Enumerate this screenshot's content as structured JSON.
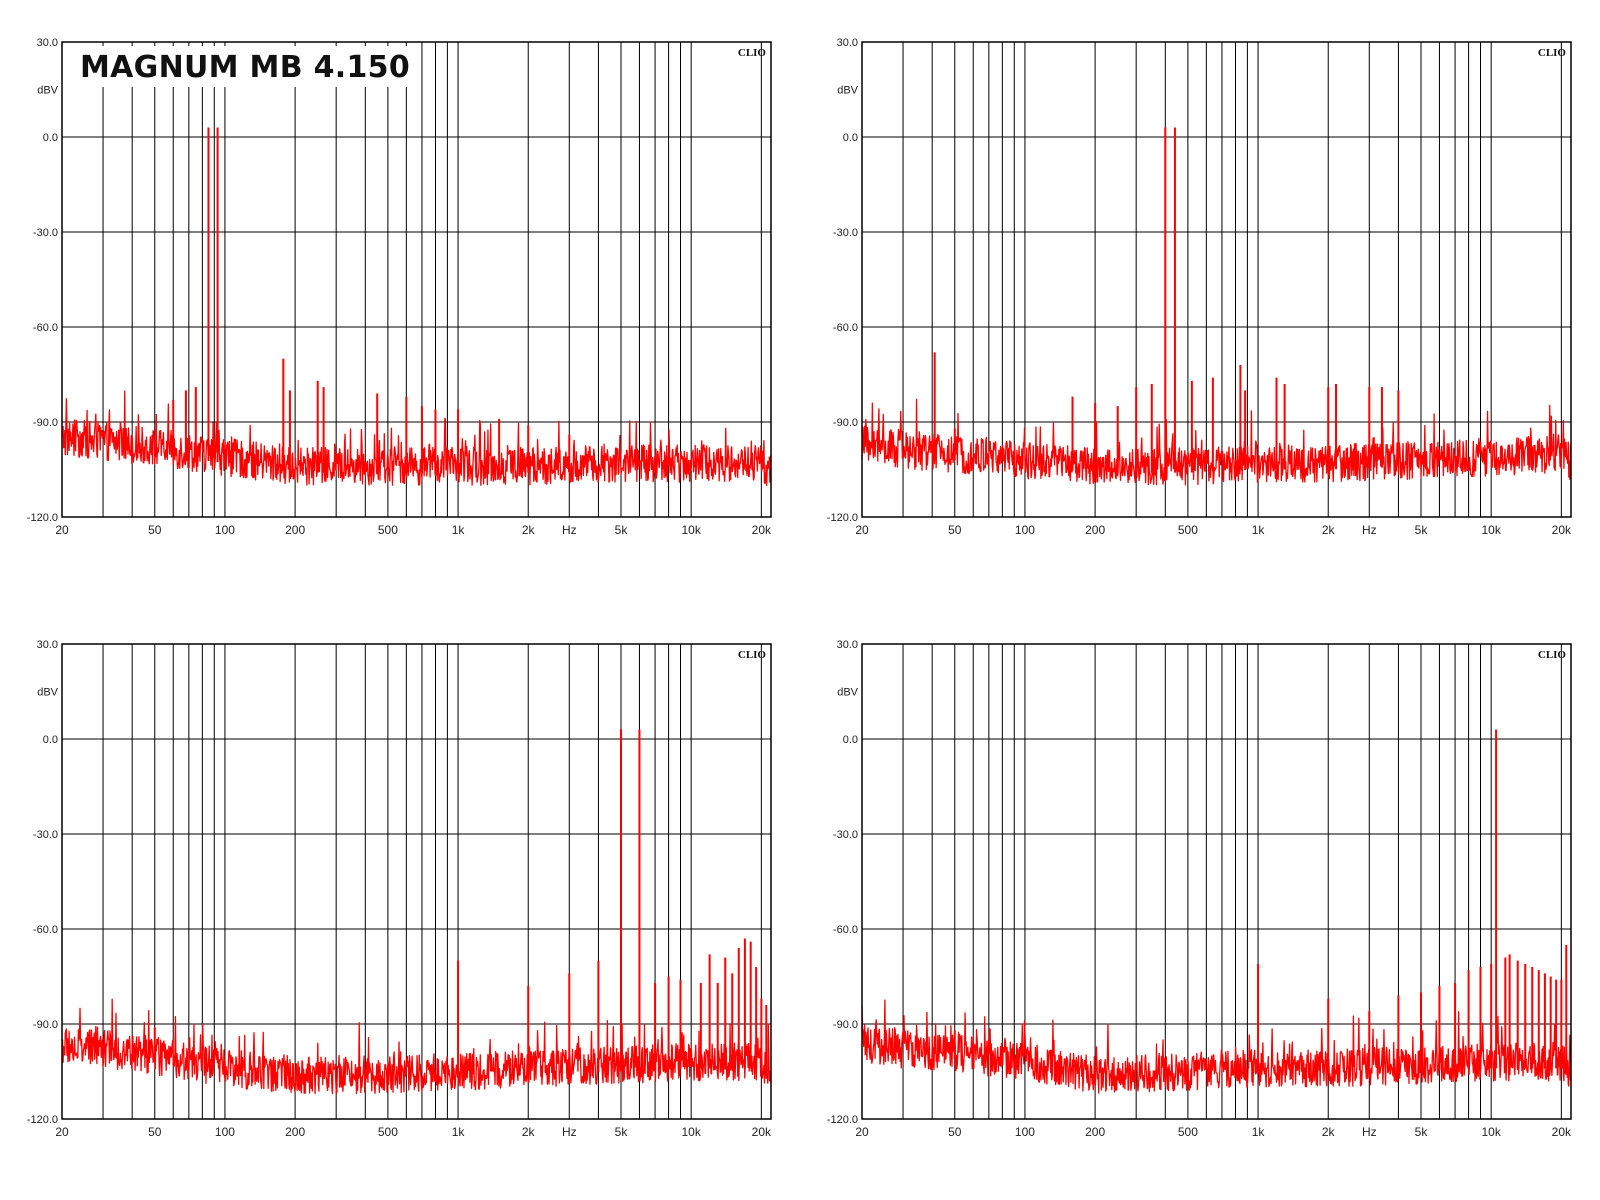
{
  "title": "MAGNUM MB 4.150",
  "colors": {
    "trace": "#ff0000",
    "grid": "#000000",
    "background": "#ffffff"
  },
  "chart_data": [
    {
      "type": "line",
      "watermark": "CLIO",
      "x_scale": "log",
      "xlim": [
        20,
        22000
      ],
      "ylim": [
        -120,
        30
      ],
      "yticks": [
        30,
        0,
        -30,
        -60,
        -90,
        -120
      ],
      "ytick_labels": [
        "30.0",
        "0.0",
        "-30.0",
        "-60.0",
        "-90.0",
        "-120.0"
      ],
      "ylabel": "dBV",
      "xticks": [
        20,
        50,
        100,
        200,
        500,
        1000,
        2000,
        5000,
        10000,
        20000
      ],
      "xtick_labels": [
        "20",
        "50",
        "100",
        "200",
        "500",
        "1k",
        "2k",
        "5k",
        "10k",
        "20k"
      ],
      "xlabel": "Hz",
      "grid": true,
      "noise_floor": [
        [
          20,
          -95
        ],
        [
          30,
          -96
        ],
        [
          50,
          -98
        ],
        [
          100,
          -101
        ],
        [
          200,
          -104
        ],
        [
          500,
          -104
        ],
        [
          1000,
          -104
        ],
        [
          2000,
          -104
        ],
        [
          5000,
          -103
        ],
        [
          10000,
          -103
        ],
        [
          20000,
          -103
        ],
        [
          22000,
          -106
        ]
      ],
      "peaks": [
        [
          85,
          3
        ],
        [
          93,
          3
        ],
        [
          60,
          -83
        ],
        [
          68,
          -80
        ],
        [
          75,
          -79
        ],
        [
          178,
          -70
        ],
        [
          190,
          -80
        ],
        [
          250,
          -77
        ],
        [
          265,
          -79
        ],
        [
          450,
          -81
        ],
        [
          600,
          -82
        ],
        [
          700,
          -85
        ],
        [
          800,
          -86
        ],
        [
          1000,
          -86
        ],
        [
          1500,
          -89
        ],
        [
          2000,
          -91
        ],
        [
          3000,
          -94
        ]
      ]
    },
    {
      "type": "line",
      "watermark": "CLIO",
      "x_scale": "log",
      "xlim": [
        20,
        22000
      ],
      "ylim": [
        -120,
        30
      ],
      "yticks": [
        30,
        0,
        -30,
        -60,
        -90,
        -120
      ],
      "ytick_labels": [
        "30.0",
        "0.0",
        "-30.0",
        "-60.0",
        "-90.0",
        "-120.0"
      ],
      "ylabel": "dBV",
      "xticks": [
        20,
        50,
        100,
        200,
        500,
        1000,
        2000,
        5000,
        10000,
        20000
      ],
      "xtick_labels": [
        "20",
        "50",
        "100",
        "200",
        "500",
        "1k",
        "2k",
        "5k",
        "10k",
        "20k"
      ],
      "xlabel": "Hz",
      "grid": true,
      "noise_floor": [
        [
          20,
          -97
        ],
        [
          30,
          -99
        ],
        [
          50,
          -100
        ],
        [
          100,
          -102
        ],
        [
          200,
          -104
        ],
        [
          500,
          -104
        ],
        [
          1000,
          -103
        ],
        [
          2000,
          -103
        ],
        [
          5000,
          -102
        ],
        [
          10000,
          -101
        ],
        [
          20000,
          -100
        ],
        [
          22000,
          -103
        ]
      ],
      "peaks": [
        [
          400,
          3
        ],
        [
          440,
          3
        ],
        [
          41,
          -68
        ],
        [
          50,
          -92
        ],
        [
          160,
          -82
        ],
        [
          200,
          -84
        ],
        [
          250,
          -85
        ],
        [
          300,
          -79
        ],
        [
          350,
          -78
        ],
        [
          520,
          -77
        ],
        [
          640,
          -76
        ],
        [
          840,
          -72
        ],
        [
          880,
          -80
        ],
        [
          1200,
          -76
        ],
        [
          1300,
          -78
        ],
        [
          2000,
          -79
        ],
        [
          2160,
          -78
        ],
        [
          3000,
          -79
        ],
        [
          3400,
          -79
        ],
        [
          4000,
          -80
        ]
      ]
    },
    {
      "type": "line",
      "watermark": "CLIO",
      "x_scale": "log",
      "xlim": [
        20,
        22000
      ],
      "ylim": [
        -120,
        30
      ],
      "yticks": [
        30,
        0,
        -30,
        -60,
        -90,
        -120
      ],
      "ytick_labels": [
        "30.0",
        "0.0",
        "-30.0",
        "-60.0",
        "-90.0",
        "-120.0"
      ],
      "ylabel": "dBV",
      "xticks": [
        20,
        50,
        100,
        200,
        500,
        1000,
        2000,
        5000,
        10000,
        20000
      ],
      "xtick_labels": [
        "20",
        "50",
        "100",
        "200",
        "500",
        "1k",
        "2k",
        "5k",
        "10k",
        "20k"
      ],
      "xlabel": "Hz",
      "grid": true,
      "noise_floor": [
        [
          20,
          -97
        ],
        [
          30,
          -98
        ],
        [
          50,
          -100
        ],
        [
          100,
          -104
        ],
        [
          200,
          -106
        ],
        [
          500,
          -106
        ],
        [
          1000,
          -105
        ],
        [
          2000,
          -104
        ],
        [
          5000,
          -103
        ],
        [
          10000,
          -102
        ],
        [
          20000,
          -102
        ],
        [
          22000,
          -106
        ]
      ],
      "peaks": [
        [
          5000,
          3
        ],
        [
          6000,
          3
        ],
        [
          50,
          -91
        ],
        [
          1000,
          -70
        ],
        [
          2000,
          -78
        ],
        [
          3000,
          -74
        ],
        [
          4000,
          -70
        ],
        [
          7000,
          -77
        ],
        [
          8000,
          -75
        ],
        [
          9000,
          -76
        ],
        [
          11000,
          -77
        ],
        [
          12000,
          -68
        ],
        [
          13000,
          -77
        ],
        [
          14000,
          -69
        ],
        [
          15000,
          -74
        ],
        [
          16000,
          -66
        ],
        [
          17000,
          -63
        ],
        [
          18000,
          -64
        ],
        [
          19000,
          -72
        ],
        [
          20000,
          -82
        ],
        [
          21000,
          -84
        ]
      ]
    },
    {
      "type": "line",
      "watermark": "CLIO",
      "x_scale": "log",
      "xlim": [
        20,
        22000
      ],
      "ylim": [
        -120,
        30
      ],
      "yticks": [
        30,
        0,
        -30,
        -60,
        -90,
        -120
      ],
      "ytick_labels": [
        "30.0",
        "0.0",
        "-30.0",
        "-60.0",
        "-90.0",
        "-120.0"
      ],
      "ylabel": "dBV",
      "xticks": [
        20,
        50,
        100,
        200,
        500,
        1000,
        2000,
        5000,
        10000,
        20000
      ],
      "xtick_labels": [
        "20",
        "50",
        "100",
        "200",
        "500",
        "1k",
        "2k",
        "5k",
        "10k",
        "20k"
      ],
      "xlabel": "Hz",
      "grid": true,
      "noise_floor": [
        [
          20,
          -96
        ],
        [
          30,
          -98
        ],
        [
          50,
          -99
        ],
        [
          100,
          -102
        ],
        [
          200,
          -106
        ],
        [
          500,
          -105
        ],
        [
          1000,
          -104
        ],
        [
          2000,
          -104
        ],
        [
          5000,
          -103
        ],
        [
          10000,
          -102
        ],
        [
          20000,
          -102
        ],
        [
          22000,
          -106
        ]
      ],
      "peaks": [
        [
          10500,
          3
        ],
        [
          50,
          -92
        ],
        [
          1000,
          -71
        ],
        [
          2000,
          -82
        ],
        [
          3000,
          -86
        ],
        [
          4000,
          -81
        ],
        [
          5000,
          -80
        ],
        [
          6000,
          -78
        ],
        [
          7000,
          -77
        ],
        [
          8000,
          -73
        ],
        [
          9000,
          -72
        ],
        [
          10000,
          -71
        ],
        [
          11500,
          -69
        ],
        [
          12000,
          -68
        ],
        [
          13000,
          -70
        ],
        [
          14000,
          -71
        ],
        [
          15000,
          -72
        ],
        [
          16000,
          -73
        ],
        [
          17000,
          -74
        ],
        [
          18000,
          -75
        ],
        [
          19000,
          -76
        ],
        [
          20000,
          -76
        ],
        [
          21000,
          -65
        ]
      ]
    }
  ]
}
